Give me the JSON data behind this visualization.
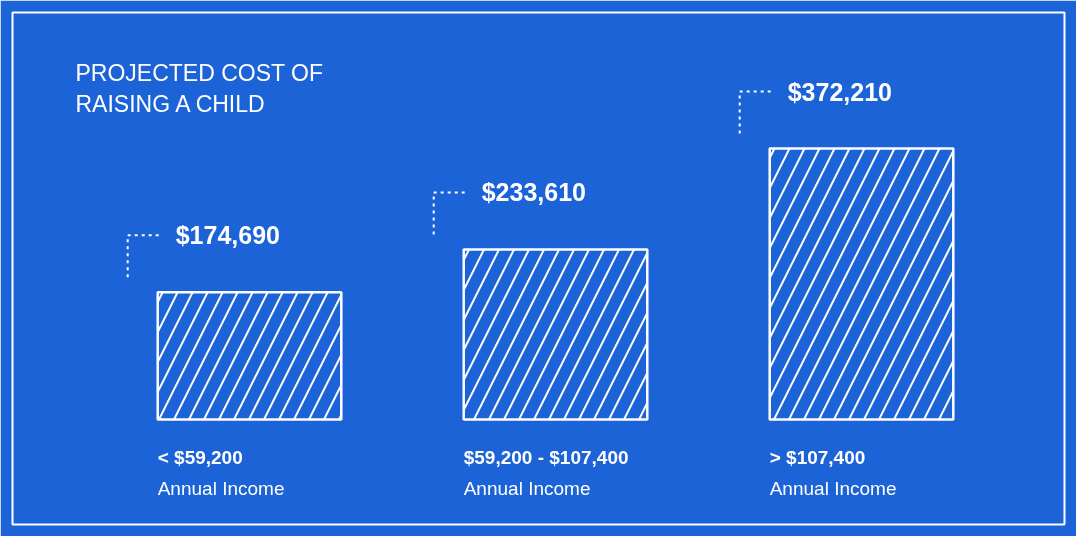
{
  "chart_data": {
    "type": "bar",
    "title": "PROJECTED COST OF RAISING A CHILD",
    "categories": [
      "< $59,200\nAnnual Income",
      "$59,200 - $107,400\nAnnual Income",
      "> $107,400\nAnnual Income"
    ],
    "values": [
      174690,
      233610,
      372210
    ],
    "value_labels": [
      "$174,690",
      "$233,610",
      "$372,210"
    ],
    "color": "#1b63d6"
  }
}
